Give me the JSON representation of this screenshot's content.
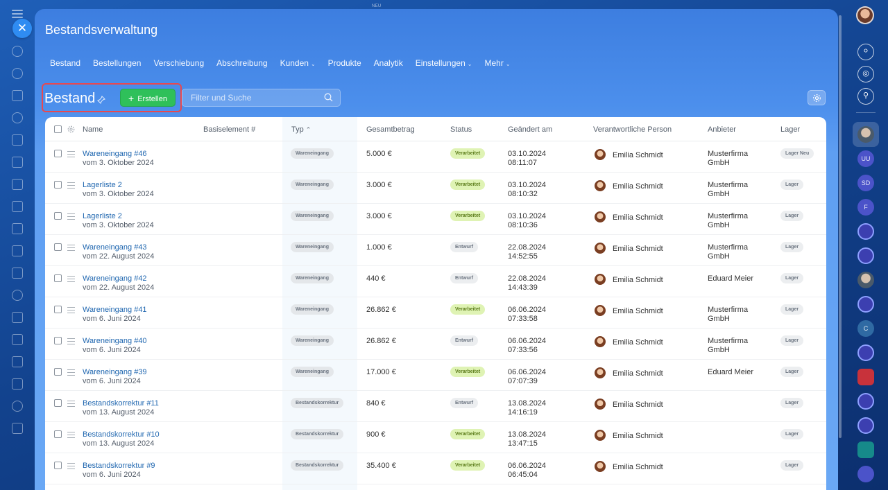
{
  "topbar": {
    "badge_label": "NEU"
  },
  "panel": {
    "title": "Bestandsverwaltung",
    "nav": [
      {
        "label": "Bestand",
        "dropdown": false
      },
      {
        "label": "Bestellungen",
        "dropdown": false
      },
      {
        "label": "Verschiebung",
        "dropdown": false
      },
      {
        "label": "Abschreibung",
        "dropdown": false
      },
      {
        "label": "Kunden",
        "dropdown": true
      },
      {
        "label": "Produkte",
        "dropdown": false
      },
      {
        "label": "Analytik",
        "dropdown": false
      },
      {
        "label": "Einstellungen",
        "dropdown": true
      },
      {
        "label": "Mehr",
        "dropdown": true
      }
    ]
  },
  "toolbar": {
    "page_title": "Bestand",
    "create_label": "Erstellen",
    "search_placeholder": "Filter und Suche"
  },
  "table": {
    "headers": {
      "name": "Name",
      "base": "Basiselement #",
      "type": "Typ",
      "amount": "Gesamtbetrag",
      "status": "Status",
      "changed": "Geändert am",
      "person": "Verantwortliche Person",
      "vendor": "Anbieter",
      "store": "Lager"
    },
    "rows": [
      {
        "name": "Wareneingang #46",
        "sub": "vom 3. Oktober 2024",
        "type": "Wareneingang",
        "amount": "5.000 €",
        "status": "Verarbeitet",
        "status_kind": "ok",
        "date": "03.10.2024",
        "time": "08:11:07",
        "person": "Emilia Schmidt",
        "vendor1": "Musterfirma",
        "vendor2": "GmbH",
        "store": "Lager Neu"
      },
      {
        "name": "Lagerliste 2",
        "sub": "vom 3. Oktober 2024",
        "type": "Wareneingang",
        "amount": "3.000 €",
        "status": "Verarbeitet",
        "status_kind": "ok",
        "date": "03.10.2024",
        "time": "08:10:32",
        "person": "Emilia Schmidt",
        "vendor1": "Musterfirma",
        "vendor2": "GmbH",
        "store": "Lager"
      },
      {
        "name": "Lagerliste 2",
        "sub": "vom 3. Oktober 2024",
        "type": "Wareneingang",
        "amount": "3.000 €",
        "status": "Verarbeitet",
        "status_kind": "ok",
        "date": "03.10.2024",
        "time": "08:10:36",
        "person": "Emilia Schmidt",
        "vendor1": "Musterfirma",
        "vendor2": "GmbH",
        "store": "Lager"
      },
      {
        "name": "Wareneingang #43",
        "sub": "vom 22. August 2024",
        "type": "Wareneingang",
        "amount": "1.000 €",
        "status": "Entwurf",
        "status_kind": "draft",
        "date": "22.08.2024",
        "time": "14:52:55",
        "person": "Emilia Schmidt",
        "vendor1": "Musterfirma",
        "vendor2": "GmbH",
        "store": "Lager"
      },
      {
        "name": "Wareneingang #42",
        "sub": "vom 22. August 2024",
        "type": "Wareneingang",
        "amount": "440 €",
        "status": "Entwurf",
        "status_kind": "draft",
        "date": "22.08.2024",
        "time": "14:43:39",
        "person": "Emilia Schmidt",
        "vendor1": "Eduard Meier",
        "vendor2": "",
        "store": "Lager"
      },
      {
        "name": "Wareneingang #41",
        "sub": "vom 6. Juni 2024",
        "type": "Wareneingang",
        "amount": "26.862 €",
        "status": "Verarbeitet",
        "status_kind": "ok",
        "date": "06.06.2024",
        "time": "07:33:58",
        "person": "Emilia Schmidt",
        "vendor1": "Musterfirma",
        "vendor2": "GmbH",
        "store": "Lager"
      },
      {
        "name": "Wareneingang #40",
        "sub": "vom 6. Juni 2024",
        "type": "Wareneingang",
        "amount": "26.862 €",
        "status": "Entwurf",
        "status_kind": "draft",
        "date": "06.06.2024",
        "time": "07:33:56",
        "person": "Emilia Schmidt",
        "vendor1": "Musterfirma",
        "vendor2": "GmbH",
        "store": "Lager"
      },
      {
        "name": "Wareneingang #39",
        "sub": "vom 6. Juni 2024",
        "type": "Wareneingang",
        "amount": "17.000 €",
        "status": "Verarbeitet",
        "status_kind": "ok",
        "date": "06.06.2024",
        "time": "07:07:39",
        "person": "Emilia Schmidt",
        "vendor1": "Eduard Meier",
        "vendor2": "",
        "store": "Lager"
      },
      {
        "name": "Bestandskorrektur #11",
        "sub": "vom 13. August 2024",
        "type": "Bestandskorrektur",
        "amount": "840 €",
        "status": "Entwurf",
        "status_kind": "draft",
        "date": "13.08.2024",
        "time": "14:16:19",
        "person": "Emilia Schmidt",
        "vendor1": "",
        "vendor2": "",
        "store": "Lager"
      },
      {
        "name": "Bestandskorrektur #10",
        "sub": "vom 13. August 2024",
        "type": "Bestandskorrektur",
        "amount": "900 €",
        "status": "Verarbeitet",
        "status_kind": "ok",
        "date": "13.08.2024",
        "time": "13:47:15",
        "person": "Emilia Schmidt",
        "vendor1": "",
        "vendor2": "",
        "store": "Lager"
      },
      {
        "name": "Bestandskorrektur #9",
        "sub": "vom 6. Juni 2024",
        "type": "Bestandskorrektur",
        "amount": "35.400 €",
        "status": "Verarbeitet",
        "status_kind": "ok",
        "date": "06.06.2024",
        "time": "06:45:04",
        "person": "Emilia Schmidt",
        "vendor1": "",
        "vendor2": "",
        "store": "Lager"
      }
    ]
  },
  "right_rail": {
    "avatars": [
      {
        "label": "",
        "kind": "photo"
      },
      {
        "label": "UU",
        "kind": "plain"
      },
      {
        "label": "SD",
        "kind": "plain"
      },
      {
        "label": "F",
        "kind": "plain"
      },
      {
        "label": "",
        "kind": "ring"
      },
      {
        "label": "",
        "kind": "ring"
      },
      {
        "label": "",
        "kind": "photo"
      },
      {
        "label": "",
        "kind": "ring"
      },
      {
        "label": "C",
        "kind": "steel"
      },
      {
        "label": "",
        "kind": "ring"
      },
      {
        "label": "",
        "kind": "red"
      },
      {
        "label": "",
        "kind": "ring"
      },
      {
        "label": "",
        "kind": "ring"
      },
      {
        "label": "",
        "kind": "teal"
      },
      {
        "label": "",
        "kind": "plain"
      }
    ]
  }
}
